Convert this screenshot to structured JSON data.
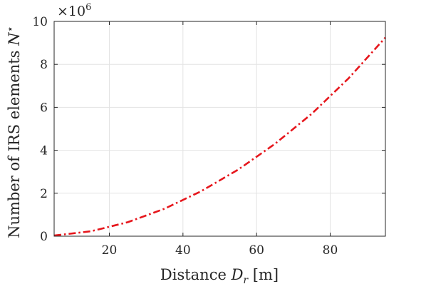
{
  "chart_data": {
    "type": "line",
    "xlabel": {
      "prefix": "Distance ",
      "var": "D",
      "sub": "r",
      "suffix": " [m]"
    },
    "ylabel": {
      "prefix": "Number of IRS elements ",
      "var": "N",
      "sup": "⋆"
    },
    "y_multiplier": {
      "base": "×10",
      "exp": "6"
    },
    "xlim": [
      5,
      95
    ],
    "ylim": [
      0,
      10
    ],
    "xticks": [
      20,
      40,
      60,
      80
    ],
    "yticks": [
      0,
      2,
      4,
      6,
      8,
      10
    ],
    "grid": true,
    "series": [
      {
        "style": "dash-dot",
        "color": "#e6161c",
        "x": [
          5,
          15,
          25,
          35,
          45,
          55,
          65,
          75,
          85,
          95
        ],
        "y": [
          0.03,
          0.23,
          0.65,
          1.28,
          2.1,
          3.1,
          4.3,
          5.7,
          7.35,
          9.25
        ]
      }
    ]
  }
}
